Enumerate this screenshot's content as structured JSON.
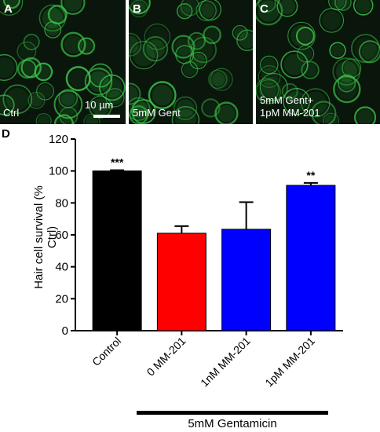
{
  "panels": [
    {
      "id": "A",
      "caption": "Ctrl"
    },
    {
      "id": "B",
      "caption": "5mM Gent"
    },
    {
      "id": "C",
      "caption_line1": "5mM Gent+",
      "caption_line2": "1pM MM-201"
    }
  ],
  "scale_bar_label": "10 µm",
  "chart_label": "D",
  "colors": {
    "control": "#000000",
    "gent": "#ff0000",
    "mm201": "#0000ff",
    "fluorescence": "#3cc84a"
  },
  "chart_data": {
    "type": "bar",
    "ylabel": "Hair cell survival (% Ctrl)",
    "ylim": [
      0,
      120
    ],
    "yticks": [
      0,
      20,
      40,
      60,
      80,
      100,
      120
    ],
    "categories": [
      "Control",
      "0 MM-201",
      "1nM MM-201",
      "1pM MM-201"
    ],
    "values": [
      100,
      61,
      63.5,
      91
    ],
    "errors": [
      0.5,
      4.5,
      17,
      1.5
    ],
    "significance": [
      "***",
      "",
      "",
      "**"
    ],
    "bar_colors": [
      "#000000",
      "#ff0000",
      "#0000ff",
      "#0000ff"
    ],
    "group_label": "5mM Gentamicin"
  }
}
